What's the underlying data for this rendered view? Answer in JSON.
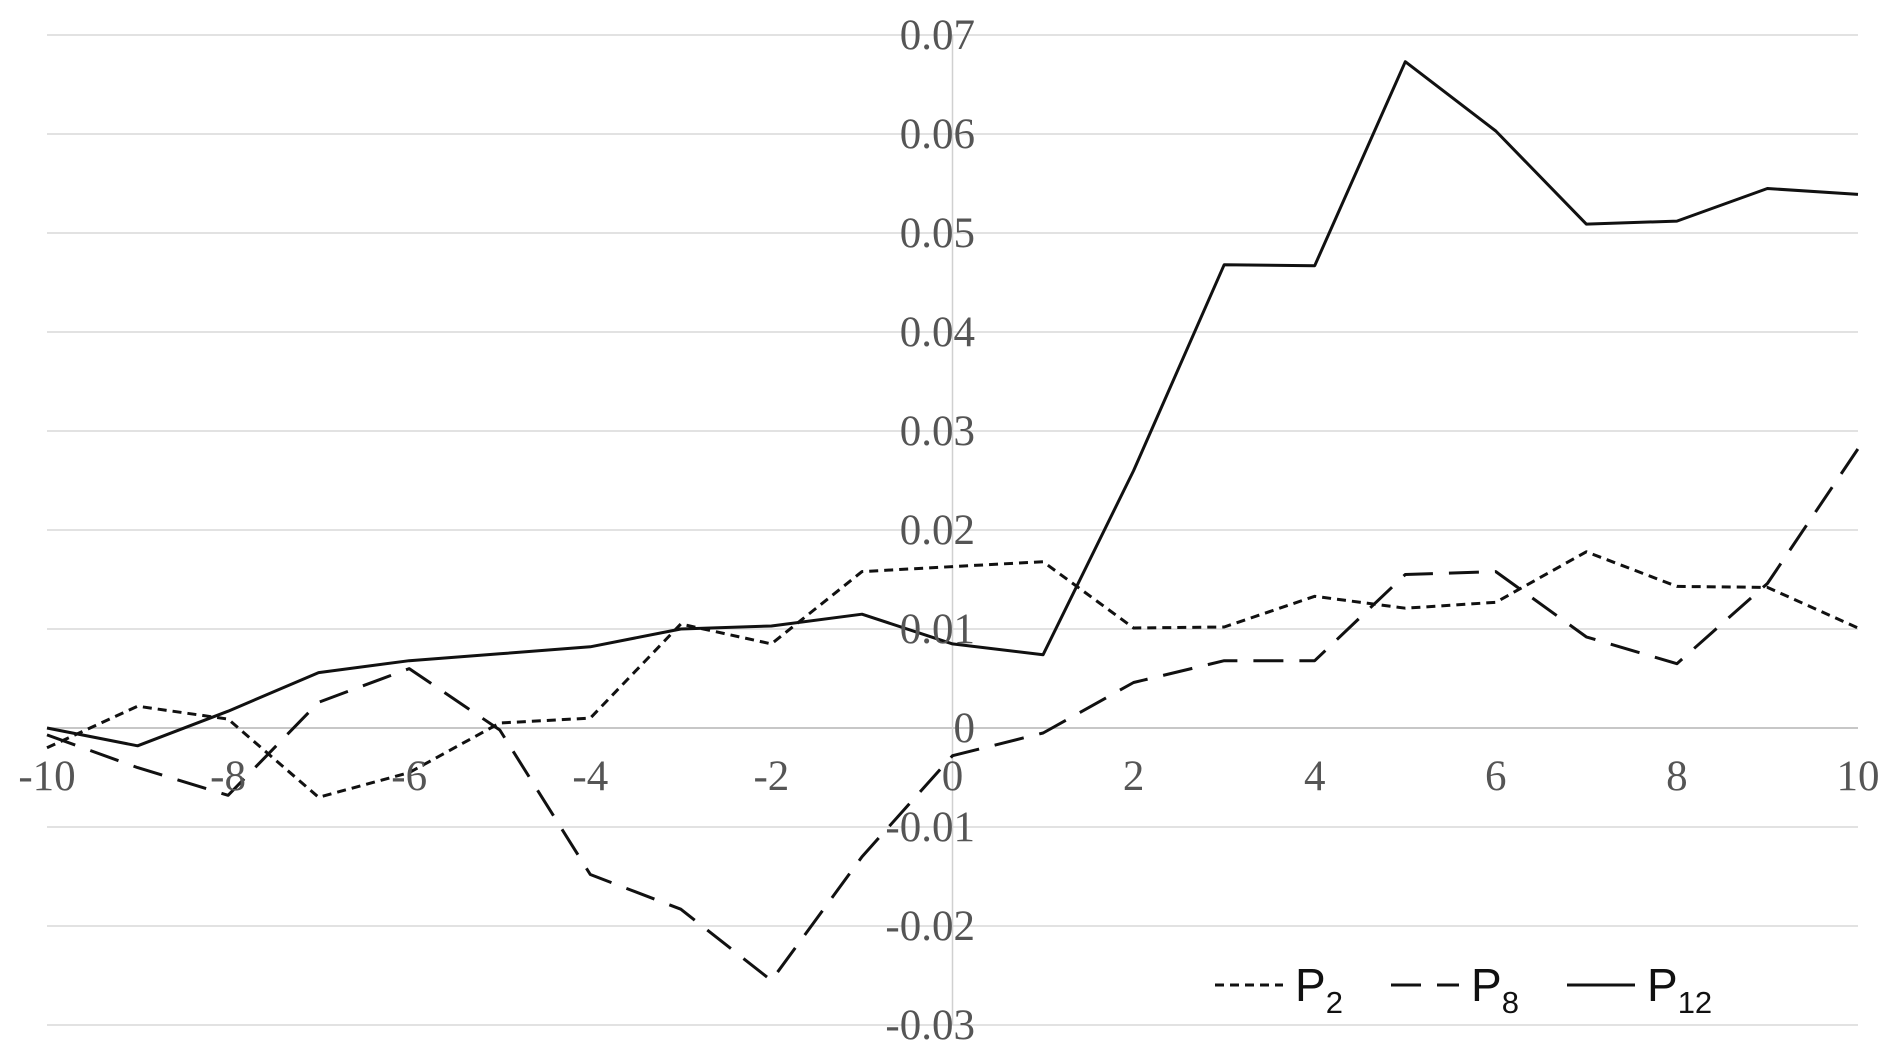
{
  "chart_data": {
    "type": "line",
    "title": "",
    "xlabel": "",
    "ylabel": "",
    "x": [
      -10,
      -9,
      -8,
      -7,
      -6,
      -5,
      -4,
      -3,
      -2,
      -1,
      0,
      1,
      2,
      3,
      4,
      5,
      6,
      7,
      8,
      9,
      10
    ],
    "xlim": [
      -10,
      10
    ],
    "ylim": [
      -0.03,
      0.07
    ],
    "x_ticks": [
      "-10",
      "-8",
      "-6",
      "-4",
      "-2",
      "0",
      "2",
      "4",
      "6",
      "8",
      "10"
    ],
    "y_ticks": [
      "-0.03",
      "-0.02",
      "-0.01",
      "0",
      "0.01",
      "0.02",
      "0.03",
      "0.04",
      "0.05",
      "0.06",
      "0.07"
    ],
    "grid": "horizontal",
    "legend_position": "bottom-right",
    "series": [
      {
        "name": "P",
        "subscript": "2",
        "dash": "short-dash",
        "values": [
          -0.002,
          0.0022,
          0.0009,
          -0.007,
          -0.0045,
          0.0005,
          0.001,
          0.0105,
          0.0085,
          0.0158,
          0.0163,
          0.0168,
          0.0101,
          0.0102,
          0.0133,
          0.0121,
          0.0127,
          0.0178,
          0.0143,
          0.0142,
          0.0101
        ]
      },
      {
        "name": "P",
        "subscript": "8",
        "dash": "long-dash",
        "values": [
          -0.0007,
          -0.004,
          -0.0068,
          0.0026,
          0.006,
          -0.0002,
          -0.0148,
          -0.0183,
          -0.0255,
          -0.013,
          -0.0028,
          -0.0005,
          0.0046,
          0.0068,
          0.0068,
          0.0155,
          0.0158,
          0.0092,
          0.0065,
          0.0146,
          0.0282
        ]
      },
      {
        "name": "P",
        "subscript": "12",
        "dash": "solid",
        "values": [
          0.0,
          -0.0018,
          0.0017,
          0.0056,
          0.0068,
          0.0075,
          0.0082,
          0.01,
          0.0103,
          0.0115,
          0.0085,
          0.0074,
          0.026,
          0.0468,
          0.0467,
          0.0673,
          0.0603,
          0.0509,
          0.0512,
          0.0545,
          0.0539
        ]
      }
    ]
  }
}
